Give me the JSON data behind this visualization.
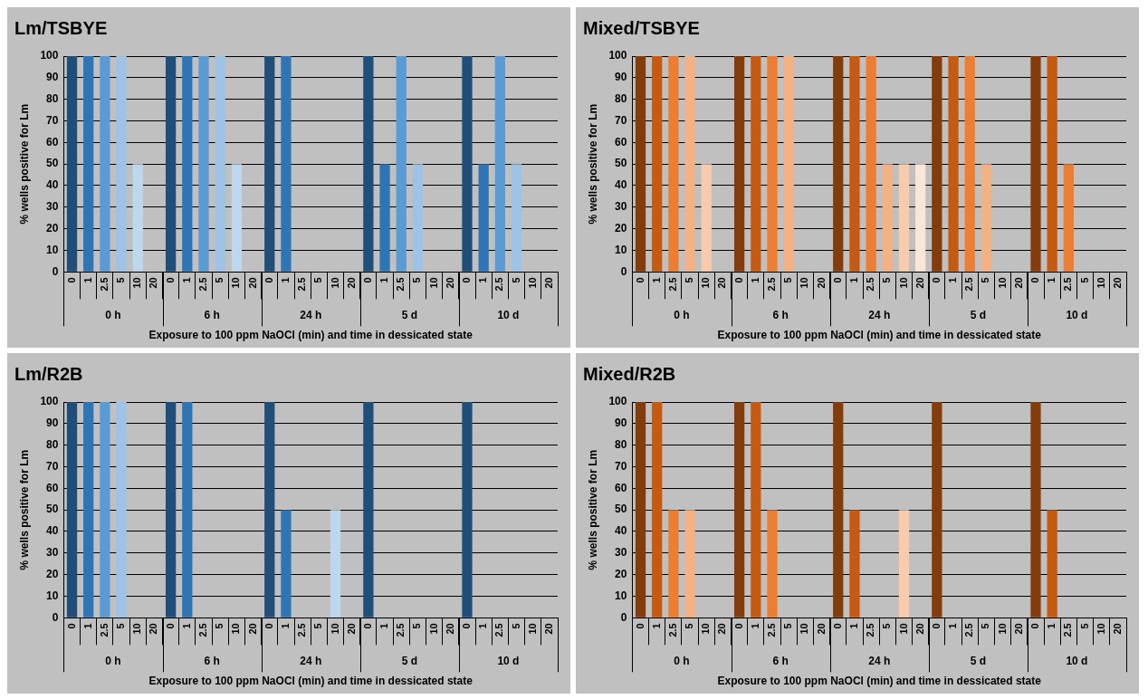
{
  "chart_data": [
    {
      "type": "bar",
      "title": "Lm/TSBYE",
      "xlabel": "Exposure to 100 ppm NaOCl (min) and time in dessicated state",
      "ylabel": "% wells positive for Lm",
      "categories": [
        "0",
        "1",
        "2.5",
        "5",
        "10",
        "20",
        "0",
        "1",
        "2.5",
        "5",
        "10",
        "20",
        "0",
        "1",
        "2.5",
        "5",
        "10",
        "20",
        "0",
        "1",
        "2.5",
        "5",
        "10",
        "20",
        "0",
        "1",
        "2.5",
        "5",
        "10",
        "20"
      ],
      "values": [
        100,
        100,
        100,
        100,
        50,
        0,
        100,
        100,
        100,
        100,
        50,
        0,
        100,
        100,
        0,
        0,
        0,
        0,
        100,
        50,
        100,
        50,
        0,
        0,
        100,
        50,
        100,
        50,
        0,
        0
      ],
      "colors": [
        "#1f4e79",
        "#2e75b6",
        "#5b9bd5",
        "#9dc3e6",
        "#bdd7ee",
        "#deebf7",
        "#1f4e79",
        "#2e75b6",
        "#5b9bd5",
        "#9dc3e6",
        "#bdd7ee",
        "#deebf7",
        "#1f4e79",
        "#2e75b6",
        "#5b9bd5",
        "#9dc3e6",
        "#bdd7ee",
        "#deebf7",
        "#1f4e79",
        "#2e75b6",
        "#5b9bd5",
        "#9dc3e6",
        "#bdd7ee",
        "#deebf7",
        "#1f4e79",
        "#2e75b6",
        "#5b9bd5",
        "#9dc3e6",
        "#bdd7ee",
        "#deebf7"
      ],
      "ylim": [
        0,
        100
      ],
      "yticks": [
        0,
        10,
        20,
        30,
        40,
        50,
        60,
        70,
        80,
        90,
        100
      ],
      "grid": "y",
      "annotations": [
        "0 h",
        "6 h",
        "24 h",
        "5 d",
        "10 d"
      ]
    },
    {
      "type": "bar",
      "title": "Mixed/TSBYE",
      "xlabel": "Exposure to 100 ppm NaOCl (min) and time in dessicated state",
      "ylabel": "% wells positive for Lm",
      "categories": [
        "0",
        "1",
        "2.5",
        "5",
        "10",
        "20",
        "0",
        "1",
        "2.5",
        "5",
        "10",
        "20",
        "0",
        "1",
        "2.5",
        "5",
        "10",
        "20",
        "0",
        "1",
        "2.5",
        "5",
        "10",
        "20",
        "0",
        "1",
        "2.5",
        "5",
        "10",
        "20"
      ],
      "values": [
        100,
        100,
        100,
        100,
        50,
        0,
        100,
        100,
        100,
        100,
        0,
        0,
        100,
        100,
        100,
        50,
        50,
        50,
        100,
        100,
        100,
        50,
        0,
        0,
        100,
        100,
        50,
        0,
        0,
        0
      ],
      "colors": [
        "#843c0c",
        "#c55a11",
        "#ed7d31",
        "#f4b183",
        "#f8cbad",
        "#fbe5d6",
        "#843c0c",
        "#c55a11",
        "#ed7d31",
        "#f4b183",
        "#f8cbad",
        "#fbe5d6",
        "#843c0c",
        "#c55a11",
        "#ed7d31",
        "#f4b183",
        "#f8cbad",
        "#fbe5d6",
        "#843c0c",
        "#c55a11",
        "#ed7d31",
        "#f4b183",
        "#f8cbad",
        "#fbe5d6",
        "#843c0c",
        "#c55a11",
        "#ed7d31",
        "#f4b183",
        "#f8cbad",
        "#fbe5d6"
      ],
      "ylim": [
        0,
        100
      ],
      "yticks": [
        0,
        10,
        20,
        30,
        40,
        50,
        60,
        70,
        80,
        90,
        100
      ],
      "grid": "y",
      "annotations": [
        "0 h",
        "6 h",
        "24 h",
        "5 d",
        "10 d"
      ]
    },
    {
      "type": "bar",
      "title": "Lm/R2B",
      "xlabel": "Exposure to 100 ppm NaOCl (min) and time in dessicated state",
      "ylabel": "% wells positive for Lm",
      "categories": [
        "0",
        "1",
        "2.5",
        "5",
        "10",
        "20",
        "0",
        "1",
        "2.5",
        "5",
        "10",
        "20",
        "0",
        "1",
        "2.5",
        "5",
        "10",
        "20",
        "0",
        "1",
        "2.5",
        "5",
        "10",
        "20",
        "0",
        "1",
        "2.5",
        "5",
        "10",
        "20"
      ],
      "values": [
        100,
        100,
        100,
        100,
        0,
        0,
        100,
        100,
        0,
        0,
        0,
        0,
        100,
        50,
        0,
        0,
        50,
        0,
        100,
        0,
        0,
        0,
        0,
        0,
        100,
        0,
        0,
        0,
        0,
        0
      ],
      "colors": [
        "#1f4e79",
        "#2e75b6",
        "#5b9bd5",
        "#9dc3e6",
        "#bdd7ee",
        "#deebf7",
        "#1f4e79",
        "#2e75b6",
        "#5b9bd5",
        "#9dc3e6",
        "#bdd7ee",
        "#deebf7",
        "#1f4e79",
        "#2e75b6",
        "#5b9bd5",
        "#9dc3e6",
        "#bdd7ee",
        "#deebf7",
        "#1f4e79",
        "#2e75b6",
        "#5b9bd5",
        "#9dc3e6",
        "#bdd7ee",
        "#deebf7",
        "#1f4e79",
        "#2e75b6",
        "#5b9bd5",
        "#9dc3e6",
        "#bdd7ee",
        "#deebf7"
      ],
      "ylim": [
        0,
        100
      ],
      "yticks": [
        0,
        10,
        20,
        30,
        40,
        50,
        60,
        70,
        80,
        90,
        100
      ],
      "grid": "y",
      "annotations": [
        "0 h",
        "6 h",
        "24 h",
        "5 d",
        "10 d"
      ]
    },
    {
      "type": "bar",
      "title": "Mixed/R2B",
      "xlabel": "Exposure to 100 ppm NaOCl (min) and time in dessicated state",
      "ylabel": "% wells positive for Lm",
      "categories": [
        "0",
        "1",
        "2.5",
        "5",
        "10",
        "20",
        "0",
        "1",
        "2.5",
        "5",
        "10",
        "20",
        "0",
        "1",
        "2.5",
        "5",
        "10",
        "20",
        "0",
        "1",
        "2.5",
        "5",
        "10",
        "20",
        "0",
        "1",
        "2.5",
        "5",
        "10",
        "20"
      ],
      "values": [
        100,
        100,
        50,
        50,
        0,
        0,
        100,
        100,
        50,
        0,
        0,
        0,
        100,
        50,
        0,
        0,
        50,
        0,
        100,
        0,
        0,
        0,
        0,
        0,
        100,
        50,
        0,
        0,
        0,
        0
      ],
      "colors": [
        "#843c0c",
        "#c55a11",
        "#ed7d31",
        "#f4b183",
        "#f8cbad",
        "#fbe5d6",
        "#843c0c",
        "#c55a11",
        "#ed7d31",
        "#f4b183",
        "#f8cbad",
        "#fbe5d6",
        "#843c0c",
        "#c55a11",
        "#ed7d31",
        "#f4b183",
        "#f8cbad",
        "#fbe5d6",
        "#843c0c",
        "#c55a11",
        "#ed7d31",
        "#f4b183",
        "#f8cbad",
        "#fbe5d6",
        "#843c0c",
        "#c55a11",
        "#ed7d31",
        "#f4b183",
        "#f8cbad",
        "#fbe5d6"
      ],
      "ylim": [
        0,
        100
      ],
      "yticks": [
        0,
        10,
        20,
        30,
        40,
        50,
        60,
        70,
        80,
        90,
        100
      ],
      "grid": "y",
      "annotations": [
        "0 h",
        "6 h",
        "24 h",
        "5 d",
        "10 d"
      ]
    }
  ]
}
